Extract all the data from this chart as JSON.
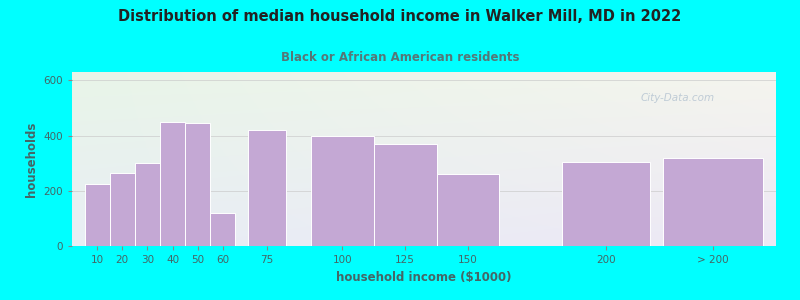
{
  "title": "Distribution of median household income in Walker Mill, MD in 2022",
  "subtitle": "Black or African American residents",
  "xlabel": "household income ($1000)",
  "ylabel": "households",
  "background_outer": "#00FFFF",
  "bar_color": "#c4a8d4",
  "bar_edge_color": "#ffffff",
  "title_color": "#222222",
  "subtitle_color": "#557777",
  "axis_label_color": "#446666",
  "tick_label_color": "#446666",
  "values": [
    225,
    265,
    300,
    450,
    445,
    120,
    420,
    400,
    370,
    260,
    305,
    320
  ],
  "bar_left_edges": [
    10,
    20,
    30,
    40,
    50,
    60,
    75,
    100,
    125,
    150,
    200,
    240
  ],
  "bar_widths": [
    10,
    10,
    10,
    10,
    10,
    10,
    15,
    25,
    25,
    25,
    35,
    40
  ],
  "ylim": [
    0,
    630
  ],
  "yticks": [
    0,
    200,
    400,
    600
  ],
  "xlim": [
    5,
    285
  ],
  "watermark": "City-Data.com",
  "tick_labels": [
    "10",
    "20",
    "30",
    "40",
    "50",
    "60",
    "75",
    "100",
    "125",
    "150",
    "200",
    "> 200"
  ],
  "grad_color_left": "#e8f5e8",
  "grad_color_right": "#ede8f5"
}
